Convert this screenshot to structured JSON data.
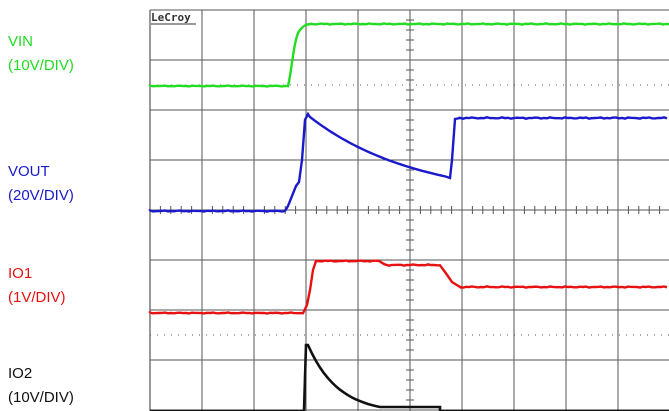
{
  "brand": "LeCroy",
  "channels": [
    {
      "id": "vin",
      "name": "VIN",
      "scale": "(10V/DIV)",
      "color": "#22dd22"
    },
    {
      "id": "vout",
      "name": "VOUT",
      "scale": "(20V/DIV)",
      "color": "#1a1acc"
    },
    {
      "id": "io1",
      "name": "IO1",
      "scale": "(1V/DIV)",
      "color": "#e81010"
    },
    {
      "id": "io2",
      "name": "IO2",
      "scale": "(10V/DIV)",
      "color": "#111111"
    }
  ],
  "grid": {
    "divisions_x": 10,
    "divisions_y": 8,
    "minor_ticks_per_div": 5
  },
  "colors": {
    "grid": "#555555",
    "background": "#ffffff"
  }
}
